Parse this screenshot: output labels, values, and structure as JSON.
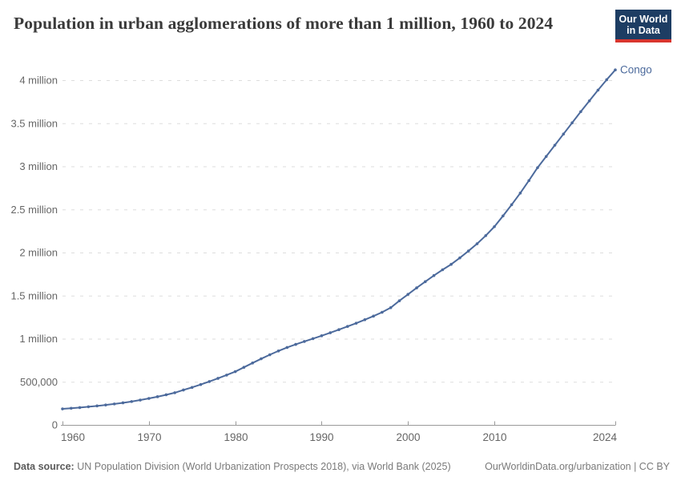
{
  "header": {
    "title": "Population in urban agglomerations of more than 1 million, 1960 to 2024",
    "logo": {
      "line1": "Our World",
      "line2": "in Data"
    }
  },
  "footer": {
    "source_label": "Data source:",
    "source_text": " UN Population Division (World Urbanization Prospects 2018), via World Bank (2025)",
    "right_text": "OurWorldinData.org/urbanization | CC BY"
  },
  "chart_data": {
    "type": "line",
    "title": "Population in urban agglomerations of more than 1 million, 1960 to 2024",
    "xlabel": "",
    "ylabel": "",
    "xlim": [
      1960,
      2024
    ],
    "ylim": [
      0,
      4000000
    ],
    "grid": "horizontal-dashed",
    "legend_position": "end-of-line-label",
    "marker": "circle",
    "x_ticks": [
      1960,
      1970,
      1980,
      1990,
      2000,
      2010,
      2024
    ],
    "y_ticks": [
      {
        "value": 0,
        "label": "0"
      },
      {
        "value": 500000,
        "label": "500,000"
      },
      {
        "value": 1000000,
        "label": "1 million"
      },
      {
        "value": 1500000,
        "label": "1.5 million"
      },
      {
        "value": 2000000,
        "label": "2 million"
      },
      {
        "value": 2500000,
        "label": "2.5 million"
      },
      {
        "value": 3000000,
        "label": "3 million"
      },
      {
        "value": 3500000,
        "label": "3.5 million"
      },
      {
        "value": 4000000,
        "label": "4 million"
      }
    ],
    "series": [
      {
        "name": "Congo",
        "color": "#4C6A9C",
        "x": [
          1960,
          1961,
          1962,
          1963,
          1964,
          1965,
          1966,
          1967,
          1968,
          1969,
          1970,
          1971,
          1972,
          1973,
          1974,
          1975,
          1976,
          1977,
          1978,
          1979,
          1980,
          1981,
          1982,
          1983,
          1984,
          1985,
          1986,
          1987,
          1988,
          1989,
          1990,
          1991,
          1992,
          1993,
          1994,
          1995,
          1996,
          1997,
          1998,
          1999,
          2000,
          2001,
          2002,
          2003,
          2004,
          2005,
          2006,
          2007,
          2008,
          2009,
          2010,
          2011,
          2012,
          2013,
          2014,
          2015,
          2016,
          2017,
          2018,
          2019,
          2020,
          2021,
          2022,
          2023,
          2024
        ],
        "y": [
          186000,
          193000,
          201000,
          210000,
          220000,
          231000,
          243000,
          256000,
          271000,
          288000,
          307000,
          327000,
          349000,
          373000,
          405000,
          435000,
          468000,
          503000,
          540000,
          578000,
          618000,
          668000,
          718000,
          767000,
          814000,
          858000,
          898000,
          934000,
          968000,
          1001000,
          1034000,
          1069000,
          1105000,
          1142000,
          1180000,
          1220000,
          1262000,
          1307000,
          1360000,
          1440000,
          1515000,
          1590000,
          1662000,
          1733000,
          1800000,
          1863000,
          1938000,
          2018000,
          2102000,
          2196000,
          2300000,
          2425000,
          2555000,
          2690000,
          2835000,
          2985000,
          3115000,
          3245000,
          3375000,
          3505000,
          3635000,
          3760000,
          3885000,
          4005000,
          4119000
        ]
      }
    ]
  },
  "style": {
    "grid_color": "#dddddd",
    "axis_color": "#9a9a9a",
    "tick_label_color": "#666666",
    "line_color": "#4C6A9C",
    "logo_bg": "#1d3d63",
    "logo_red": "#d8352e"
  }
}
